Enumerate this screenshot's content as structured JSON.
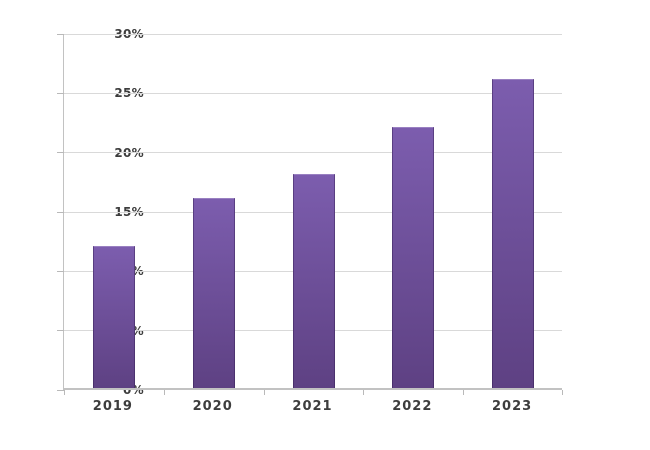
{
  "chart_data": {
    "type": "bar",
    "title": "",
    "xlabel": "",
    "ylabel": "",
    "categories": [
      "2019",
      "2020",
      "2021",
      "2022",
      "2023"
    ],
    "values": [
      12,
      16,
      18,
      22,
      26
    ],
    "ylim": [
      0,
      30
    ],
    "ytick_step": 5,
    "ytick_labels": [
      "0%",
      "5%",
      "10%",
      "15%",
      "20%",
      "25%",
      "30%"
    ],
    "grid": true,
    "legend": false,
    "colors": {
      "bar_gradient_top": "#7c5dae",
      "bar_gradient_bottom": "#5e4183",
      "bar_edge": "#32244f",
      "gridline": "#d9d9d9",
      "axis": "#c2c2c2",
      "tick": "#b9b9b9",
      "text": "#3d3d3d",
      "background": "#ffffff"
    }
  }
}
